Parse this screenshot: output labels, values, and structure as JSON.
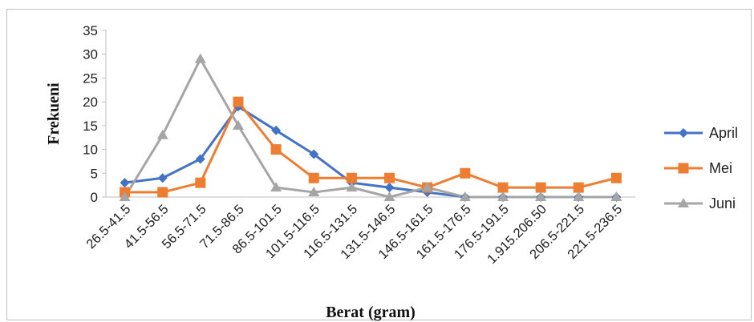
{
  "chart_data": {
    "type": "line",
    "title": "",
    "xlabel": "Berat (gram)",
    "ylabel": "Frekueni",
    "ylim": [
      0,
      35
    ],
    "yticks": [
      0,
      5,
      10,
      15,
      20,
      25,
      30,
      35
    ],
    "grid": false,
    "legend_position": "right",
    "categories": [
      "26.5-41.5",
      "41.5-56.5",
      "56.5-71.5",
      "71.5-86.5",
      "86.5-101.5",
      "101.5-116.5",
      "116.5-131.5",
      "131.5-146.5",
      "146.5-161.5",
      "161.5-176.5",
      "176.5-191.5",
      "1.915.206.50",
      "206.5-221.5",
      "221.5-236.5"
    ],
    "series": [
      {
        "name": "April",
        "color": "#4472c4",
        "marker": "diamond",
        "values": [
          3,
          4,
          8,
          19,
          14,
          9,
          3,
          2,
          1,
          0,
          0,
          0,
          0,
          0
        ]
      },
      {
        "name": "Mei",
        "color": "#ed7d31",
        "marker": "square",
        "values": [
          1,
          1,
          3,
          20,
          10,
          4,
          4,
          4,
          2,
          5,
          2,
          2,
          2,
          4
        ]
      },
      {
        "name": "Juni",
        "color": "#a5a5a5",
        "marker": "triangle",
        "values": [
          0,
          13,
          29,
          15,
          2,
          1,
          2,
          0,
          2,
          0,
          0,
          0,
          0,
          0
        ]
      }
    ]
  }
}
